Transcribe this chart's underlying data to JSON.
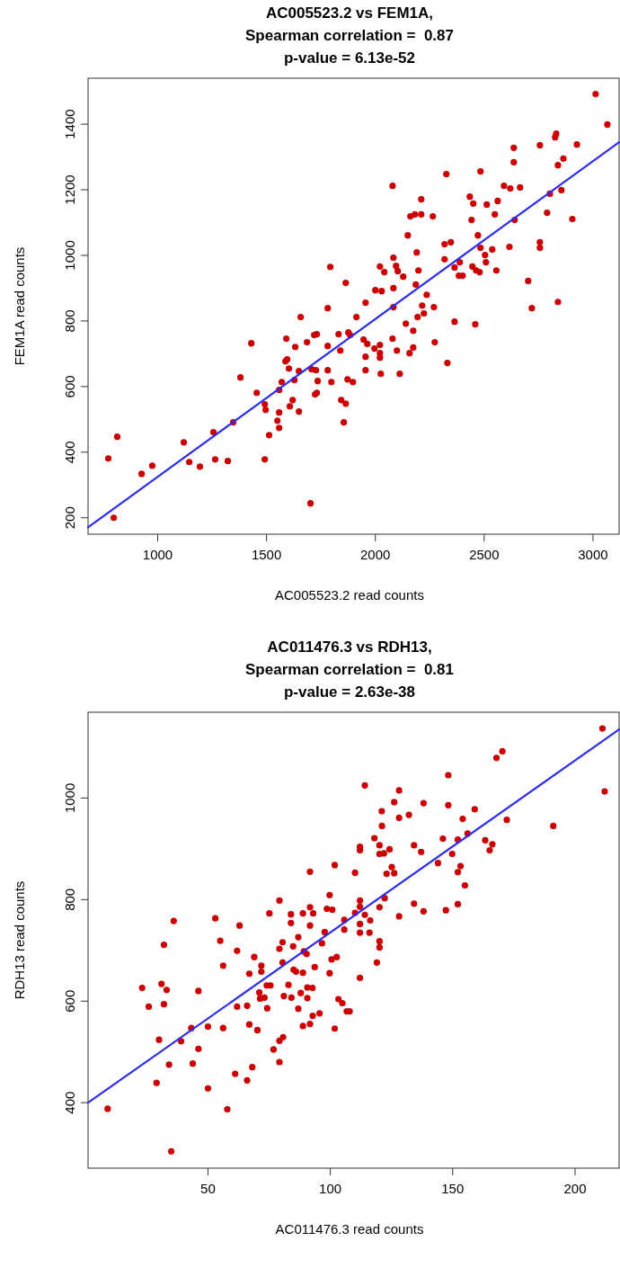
{
  "chart_data": [
    {
      "type": "scatter",
      "title": "AC005523.2 vs FEM1A,\nSpearman correlation =  0.87\np-value = 6.13e-52",
      "xlabel": "AC005523.2 read counts",
      "ylabel": "FEM1A read counts",
      "xlim": [
        680,
        3120
      ],
      "ylim": [
        150,
        1540
      ],
      "xticks": [
        1000,
        1500,
        2000,
        2500,
        3000
      ],
      "yticks": [
        200,
        400,
        600,
        800,
        1000,
        1200,
        1400
      ],
      "grid": false,
      "series": [
        {
          "color": "#cc0000",
          "marker": "circle",
          "x": [
            773,
            814,
            798,
            926,
            975,
            1120,
            1145,
            1194,
            1256,
            1264,
            1322,
            1347,
            1380,
            1430,
            1455,
            1492,
            1496,
            1492,
            1512,
            1550,
            1558,
            1558,
            1558,
            1570,
            1591,
            1587,
            1595,
            1603,
            1607,
            1620,
            1628,
            1632,
            1649,
            1649,
            1657,
            1686,
            1707,
            1702,
            1719,
            1731,
            1727,
            1723,
            1731,
            1735,
            1781,
            1793,
            1781,
            1781,
            1798,
            1831,
            1839,
            1843,
            1864,
            1855,
            1864,
            1872,
            1876,
            1884,
            1913,
            1946,
            1963,
            1955,
            1955,
            1897,
            1955,
            1996,
            2021,
            2021,
            2021,
            2025,
            2000,
            2029,
            2021,
            2041,
            2083,
            2095,
            2103,
            2128,
            2083,
            2083,
            2079,
            2079,
            2099,
            2112,
            2140,
            2149,
            2157,
            2174,
            2174,
            2161,
            2182,
            2211,
            2190,
            2198,
            2186,
            2211,
            2215,
            2223,
            2194,
            2236,
            2264,
            2269,
            2273,
            2326,
            2318,
            2347,
            2318,
            2364,
            2388,
            2384,
            2401,
            2364,
            2331,
            2434,
            2450,
            2442,
            2471,
            2446,
            2463,
            2479,
            2483,
            2504,
            2508,
            2459,
            2483,
            2512,
            2537,
            2556,
            2549,
            2562,
            2591,
            2620,
            2665,
            2636,
            2636,
            2640,
            2616,
            2702,
            2719,
            2756,
            2756,
            2789,
            2802,
            2756,
            2826,
            2831,
            2839,
            2864,
            2855,
            2839,
            2905,
            2926,
            3012,
            3066
          ],
          "values": [
            381,
            447,
            200,
            334,
            359,
            430,
            370,
            356,
            461,
            378,
            373,
            491,
            628,
            732,
            581,
            546,
            529,
            378,
            452,
            496,
            521,
            474,
            590,
            614,
            746,
            677,
            683,
            655,
            540,
            559,
            620,
            721,
            647,
            524,
            812,
            735,
            653,
            244,
            757,
            760,
            650,
            576,
            581,
            617,
            839,
            965,
            724,
            650,
            614,
            760,
            710,
            559,
            548,
            491,
            916,
            622,
            765,
            757,
            812,
            743,
            730,
            691,
            650,
            614,
            856,
            716,
            727,
            702,
            688,
            639,
            894,
            891,
            966,
            949,
            993,
            968,
            952,
            935,
            900,
            842,
            1212,
            746,
            710,
            639,
            792,
            1061,
            702,
            719,
            770,
            1119,
            1125,
            1125,
            1009,
            954,
            911,
            1171,
            847,
            823,
            812,
            880,
            1119,
            842,
            735,
            1248,
            1034,
            1040,
            988,
            963,
            979,
            938,
            938,
            798,
            672,
            1179,
            1158,
            1108,
            1061,
            966,
            954,
            949,
            1023,
            1001,
            979,
            790,
            1256,
            1155,
            1018,
            954,
            1125,
            1166,
            1212,
            1204,
            1207,
            1284,
            1328,
            1108,
            1026,
            922,
            839,
            1040,
            1023,
            1130,
            1188,
            1336,
            1360,
            1371,
            1275,
            1295,
            1199,
            858,
            1111,
            1338,
            1492,
            1399
          ]
        },
        {
          "type": "line",
          "color": "#2b2bff",
          "line_style": "solid",
          "x": [
            680,
            3120
          ],
          "values": [
            171,
            1345
          ]
        }
      ]
    },
    {
      "type": "scatter",
      "title": "AC011476.3 vs RDH13,\nSpearman correlation =  0.81\np-value = 2.63e-38",
      "xlabel": "AC011476.3 read counts",
      "ylabel": "RDH13 read counts",
      "xlim": [
        1,
        218
      ],
      "ylim": [
        271,
        1169
      ],
      "xticks": [
        50,
        100,
        150,
        200
      ],
      "yticks": [
        400,
        600,
        800,
        1000
      ],
      "grid": false,
      "series": [
        {
          "color": "#cc0000",
          "marker": "circle",
          "x": [
            9,
            35,
            23.1,
            25.8,
            31,
            33.1,
            32,
            32,
            36,
            30,
            29,
            34.1,
            39,
            43.2,
            43.8,
            46.1,
            46.1,
            50,
            50,
            53,
            55,
            56.2,
            56.2,
            57.9,
            61.1,
            61.9,
            61.9,
            62.9,
            66,
            66,
            66.9,
            66.9,
            68.1,
            68.9,
            70.2,
            71,
            71.8,
            71.8,
            71.3,
            73.1,
            74.2,
            74,
            75.5,
            75.1,
            76.8,
            79.2,
            79.2,
            80.7,
            79.2,
            80.5,
            80.5,
            79.2,
            81,
            82.9,
            83.9,
            83.9,
            84.1,
            84.8,
            85,
            86,
            86.9,
            86.9,
            87.9,
            88.8,
            88.8,
            88.8,
            89.2,
            90.3,
            90.6,
            90.6,
            91.7,
            91.7,
            92.7,
            93,
            91.7,
            92.8,
            93.6,
            95.6,
            96.6,
            97.7,
            98.6,
            100.8,
            99.7,
            101.8,
            91.7,
            100.5,
            102.6,
            99.7,
            103.3,
            104.9,
            106.7,
            101.8,
            105.7,
            105.7,
            211.2,
            212.1,
            191.1,
            167.9,
            170.3,
            148.2,
            148.2,
            138.1,
            128.1,
            126.1,
            121,
            114.1,
            128.1,
            132.1,
            121.1,
            118,
            112.1,
            112.1,
            120.1,
            120.1,
            121.9,
            124.2,
            110.1,
            123,
            125.1,
            126.1,
            134.2,
            137.1,
            146,
            144,
            149.8,
            152.1,
            156.1,
            154.1,
            159,
            172.1,
            163.3,
            166.2,
            165.1,
            153.2,
            152.1,
            155,
            152.1,
            147.2,
            138.1,
            134.2,
            128.1,
            122.2,
            120.1,
            112.1,
            112.1,
            110.1,
            114.1,
            116.3,
            112.1,
            112.1,
            116,
            120.1,
            120.1,
            119,
            112.1,
            107.9
          ],
          "values": [
            388,
            304,
            626,
            589,
            634,
            622,
            594,
            711,
            758,
            524,
            439,
            475,
            521,
            547,
            477,
            620,
            506,
            550,
            428,
            763,
            719,
            670,
            547,
            387,
            457,
            699,
            589,
            749,
            591,
            444,
            654,
            554,
            470,
            687,
            543,
            617,
            670,
            658,
            605,
            607,
            586,
            631,
            631,
            773,
            505,
            480,
            522,
            529,
            703,
            716,
            676,
            798,
            610,
            632,
            771,
            754,
            607,
            708,
            662,
            658,
            585,
            726,
            616,
            656,
            773,
            551,
            698,
            693,
            606,
            627,
            749,
            785,
            626,
            773,
            555,
            571,
            667,
            576,
            714,
            736,
            782,
            780,
            809,
            868,
            855,
            682,
            687,
            655,
            604,
            596,
            580,
            546,
            760,
            741,
            1137,
            1013,
            945,
            1079,
            1092,
            1045,
            986,
            990,
            1015,
            992,
            974,
            1025,
            961,
            967,
            945,
            921,
            904,
            897,
            907,
            890,
            891,
            899,
            853,
            851,
            864,
            852,
            907,
            894,
            920,
            872,
            890,
            918,
            930,
            959,
            978,
            957,
            917,
            909,
            897,
            866,
            854,
            828,
            791,
            779,
            777,
            792,
            767,
            803,
            785,
            798,
            786,
            774,
            770,
            759,
            752,
            735,
            735,
            718,
            706,
            676,
            646,
            580
          ]
        },
        {
          "type": "line",
          "color": "#2b2bff",
          "line_style": "solid",
          "x": [
            1,
            218
          ],
          "values": [
            400,
            1135
          ]
        }
      ]
    }
  ]
}
